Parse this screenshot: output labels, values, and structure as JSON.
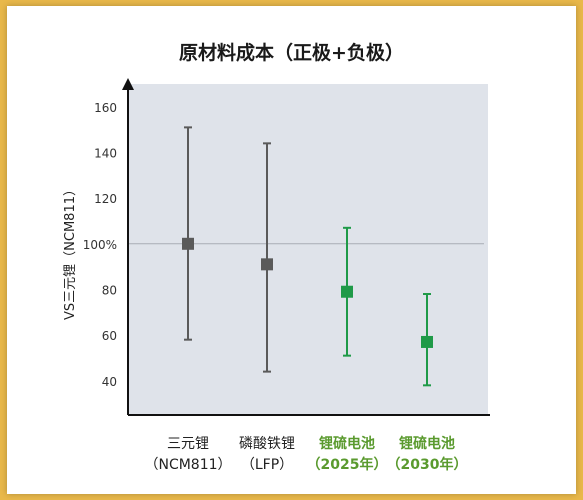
{
  "chart_data": {
    "type": "errorbar",
    "title": "原材料成本（正极+负极）",
    "ylabel": "VS三元锂（NCM811）",
    "y_ticks": [
      "40",
      "60",
      "80",
      "100%",
      "120",
      "140",
      "160"
    ],
    "y_tick_values": [
      40,
      60,
      80,
      100,
      120,
      140,
      160
    ],
    "ylim": [
      25,
      170
    ],
    "reference_line": 100,
    "categories": [
      {
        "line1": "三元锂",
        "line2": "（NCM811）",
        "mid": 100,
        "low": 58,
        "high": 151,
        "color": "#5a5a5a",
        "label_color": "#222222",
        "label_bold": false
      },
      {
        "line1": "磷酸铁锂",
        "line2": "（LFP）",
        "mid": 91,
        "low": 44,
        "high": 144,
        "color": "#5a5a5a",
        "label_color": "#222222",
        "label_bold": false
      },
      {
        "line1": "锂硫电池",
        "line2": "（2025年）",
        "mid": 79,
        "low": 51,
        "high": 107,
        "color": "#1f9a48",
        "label_color": "#5a9a2e",
        "label_bold": true
      },
      {
        "line1": "锂硫电池",
        "line2": "（2030年）",
        "mid": 57,
        "low": 38,
        "high": 78,
        "color": "#1f9a48",
        "label_color": "#5a9a2e",
        "label_bold": true
      }
    ],
    "grid": false,
    "legend": "none"
  }
}
